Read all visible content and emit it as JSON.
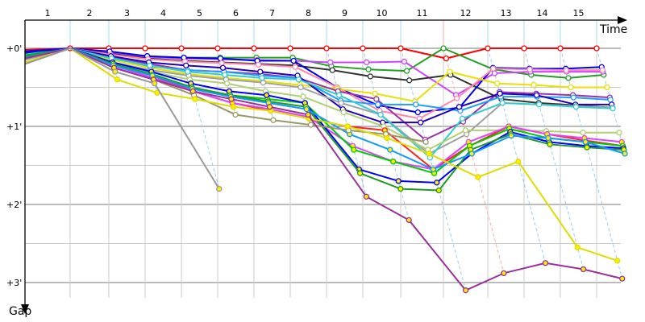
{
  "chart_data": {
    "type": "line",
    "xlabel": "Time",
    "ylabel": "Gap",
    "x_tick_labels": [
      "1",
      "2",
      "3",
      "4",
      "5",
      "6",
      "7",
      "8",
      "9",
      "10",
      "11",
      "12",
      "13",
      "14",
      "15"
    ],
    "y_tick_labels": [
      "+0'",
      "+1'",
      "+2'",
      "+3'"
    ],
    "y_ticks": [
      0,
      1,
      2,
      3
    ],
    "ylim": [
      0,
      3.3
    ],
    "y_unit": "minutes",
    "grid": true,
    "checkpoints": 16,
    "series": [
      {
        "color": "#ff0000",
        "marker": "#ffffff",
        "gaps": [
          0.02,
          0,
          0,
          0,
          0,
          0,
          0,
          0,
          0,
          0,
          0,
          0.13,
          0,
          0,
          0,
          0
        ]
      },
      {
        "color": "#22a022",
        "marker": "#ffffff",
        "gaps": [
          0.05,
          0,
          0.05,
          0.1,
          0.12,
          0.12,
          0.12,
          0.12,
          0.23,
          0.27,
          0.29,
          0,
          0.27,
          0.34,
          0.38,
          0.34
        ]
      },
      {
        "color": "#cc44ff",
        "marker": "#ffffff",
        "gaps": [
          0.08,
          0,
          0.06,
          0.11,
          0.13,
          0.14,
          0.15,
          0.16,
          0.18,
          0.18,
          0.17,
          0.6,
          0.32,
          0.3,
          0.3,
          0.3
        ]
      },
      {
        "color": "#333333",
        "marker": "#ffffff",
        "gaps": [
          0.1,
          0,
          0.07,
          0.13,
          0.16,
          0.18,
          0.2,
          0.22,
          0.28,
          0.36,
          0.41,
          0.34,
          0.65,
          0.7,
          0.73,
          0.76
        ]
      },
      {
        "color": "#0000ee",
        "marker": "#ffffff",
        "gaps": [
          0.04,
          0,
          0.04,
          0.1,
          0.12,
          0.13,
          0.16,
          0.16,
          0.5,
          0.73,
          0.82,
          0.76,
          0.25,
          0.26,
          0.26,
          0.24
        ]
      },
      {
        "color": "#ff88aa",
        "marker": "#ffffff",
        "gaps": [
          0.06,
          0,
          0.08,
          0.14,
          0.17,
          0.19,
          0.21,
          0.24,
          0.5,
          0.8,
          0.9,
          0.64,
          0.26,
          0.27,
          0.28,
          0.28
        ]
      },
      {
        "color": "#e8e000",
        "marker": "#ffffff",
        "gaps": [
          0.12,
          0,
          0.15,
          0.25,
          0.33,
          0.38,
          0.42,
          0.47,
          0.52,
          0.58,
          0.68,
          0.3,
          0.45,
          0.47,
          0.5,
          0.5
        ]
      },
      {
        "color": "#9933aa",
        "marker": "#ffffff",
        "gaps": [
          0.1,
          0,
          0.12,
          0.2,
          0.28,
          0.3,
          0.33,
          0.38,
          0.55,
          0.65,
          1.17,
          0.94,
          0.56,
          0.58,
          0.6,
          0.63
        ]
      },
      {
        "color": "#1e9fff",
        "marker": "#ffffff",
        "gaps": [
          0.09,
          0,
          0.12,
          0.23,
          0.28,
          0.3,
          0.35,
          0.38,
          0.67,
          0.72,
          0.72,
          0.8,
          0.62,
          0.62,
          0.63,
          0.66
        ]
      },
      {
        "color": "#2200bb",
        "marker": "#ffffff",
        "gaps": [
          0.07,
          0,
          0.1,
          0.18,
          0.22,
          0.25,
          0.3,
          0.35,
          0.78,
          0.95,
          0.95,
          0.75,
          0.58,
          0.6,
          0.72,
          0.72
        ]
      },
      {
        "color": "#a0a0a0",
        "marker": "#ffffff",
        "gaps": [
          0.15,
          0,
          0.18,
          0.28,
          0.35,
          0.4,
          0.44,
          0.5,
          0.7,
          0.85,
          1.35,
          1.1,
          0.7,
          0.72,
          0.74,
          0.76
        ]
      },
      {
        "color": "#33cccc",
        "marker": "#ffffff",
        "gaps": [
          0.08,
          0,
          0.13,
          0.22,
          0.3,
          0.34,
          0.38,
          0.4,
          0.6,
          0.85,
          1.4,
          0.9,
          0.7,
          0.72,
          0.75,
          0.77
        ]
      },
      {
        "color": "#b0d070",
        "marker": "#ffffff",
        "gaps": [
          0.13,
          0,
          0.2,
          0.3,
          0.4,
          0.45,
          0.55,
          0.62,
          0.82,
          1.0,
          1.3,
          1.05,
          1.05,
          1.06,
          1.08,
          1.08
        ]
      },
      {
        "color": "#ff2020",
        "marker": "#ffee00",
        "gaps": [
          0.1,
          0,
          0.2,
          0.35,
          0.55,
          0.7,
          0.8,
          0.9,
          1.0,
          1.05,
          1.55,
          1.25,
          1.0,
          1.1,
          1.18,
          1.25
        ]
      },
      {
        "color": "#dd44ff",
        "marker": "#ffee00",
        "gaps": [
          0.11,
          0,
          0.22,
          0.38,
          0.55,
          0.7,
          0.78,
          0.88,
          1.25,
          1.45,
          1.55,
          1.2,
          1.0,
          1.1,
          1.15,
          1.2
        ]
      },
      {
        "color": "#00cc00",
        "marker": "#ffee00",
        "gaps": [
          0.09,
          0,
          0.2,
          0.33,
          0.5,
          0.6,
          0.65,
          0.7,
          1.3,
          1.45,
          1.6,
          1.25,
          1.03,
          1.15,
          1.2,
          1.25
        ]
      },
      {
        "color": "#0000ff",
        "marker": "#ffee00",
        "gaps": [
          0.05,
          0,
          0.18,
          0.3,
          0.45,
          0.55,
          0.6,
          0.7,
          1.55,
          1.7,
          1.72,
          1.35,
          1.07,
          1.2,
          1.25,
          1.28
        ]
      },
      {
        "color": "#229922",
        "marker": "#ffee00",
        "gaps": [
          0.1,
          0,
          0.2,
          0.34,
          0.5,
          0.6,
          0.68,
          0.75,
          1.6,
          1.8,
          1.82,
          1.3,
          1.1,
          1.23,
          1.27,
          1.3
        ]
      },
      {
        "color": "#1199ff",
        "marker": "#ffee00",
        "gaps": [
          0.12,
          0,
          0.22,
          0.35,
          0.52,
          0.62,
          0.7,
          0.78,
          1.1,
          1.3,
          1.55,
          1.35,
          1.12,
          1.15,
          1.2,
          1.35
        ]
      },
      {
        "color": "#999966",
        "marker": "#ffffff",
        "gaps": [
          0.2,
          0,
          0.25,
          0.4,
          0.6,
          0.85,
          0.92,
          0.98,
          1.05,
          1.1,
          1.2,
          null,
          null,
          null,
          null,
          null
        ]
      },
      {
        "color": "#dddd00",
        "marker": "#ffee00",
        "gaps": [
          0.18,
          0,
          0.4,
          0.57,
          0.65,
          0.75,
          0.8,
          0.9,
          1.0,
          1.15,
          1.35,
          1.65,
          1.45,
          2.55,
          2.72,
          null
        ]
      },
      {
        "color": "#993399",
        "marker": "#ffee00",
        "gaps": [
          0.13,
          0,
          0.25,
          0.4,
          0.55,
          0.65,
          0.75,
          0.85,
          1.9,
          2.2,
          3.1,
          2.88,
          2.75,
          2.83,
          2.95,
          null
        ]
      },
      {
        "color": "#999999",
        "marker": "#ffee00",
        "gaps": [
          0.2,
          0,
          0.3,
          0.45,
          1.8,
          null,
          null,
          null,
          null,
          null,
          null,
          null,
          null,
          null,
          null,
          null
        ]
      }
    ]
  }
}
